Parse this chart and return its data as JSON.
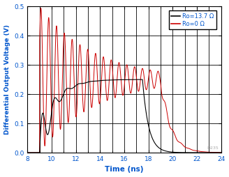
{
  "xlabel": "Time (ns)",
  "ylabel": "Differential Output Voltage (V)",
  "xlim": [
    8,
    24
  ],
  "ylim": [
    0,
    0.5
  ],
  "xticks": [
    8,
    10,
    12,
    14,
    16,
    18,
    20,
    22,
    24
  ],
  "yticks": [
    0,
    0.1,
    0.2,
    0.3,
    0.4,
    0.5
  ],
  "legend": [
    {
      "label": "Ro=13.7 Ω",
      "color": "#000000"
    },
    {
      "label": "Ro=0 Ω",
      "color": "#cc0000"
    }
  ],
  "color_ro137": "#000000",
  "color_ro0": "#cc0000",
  "watermark": "D235",
  "background": "#ffffff",
  "grid_color": "#000000",
  "grid_linewidth": 0.6,
  "label_color": "#0055cc"
}
